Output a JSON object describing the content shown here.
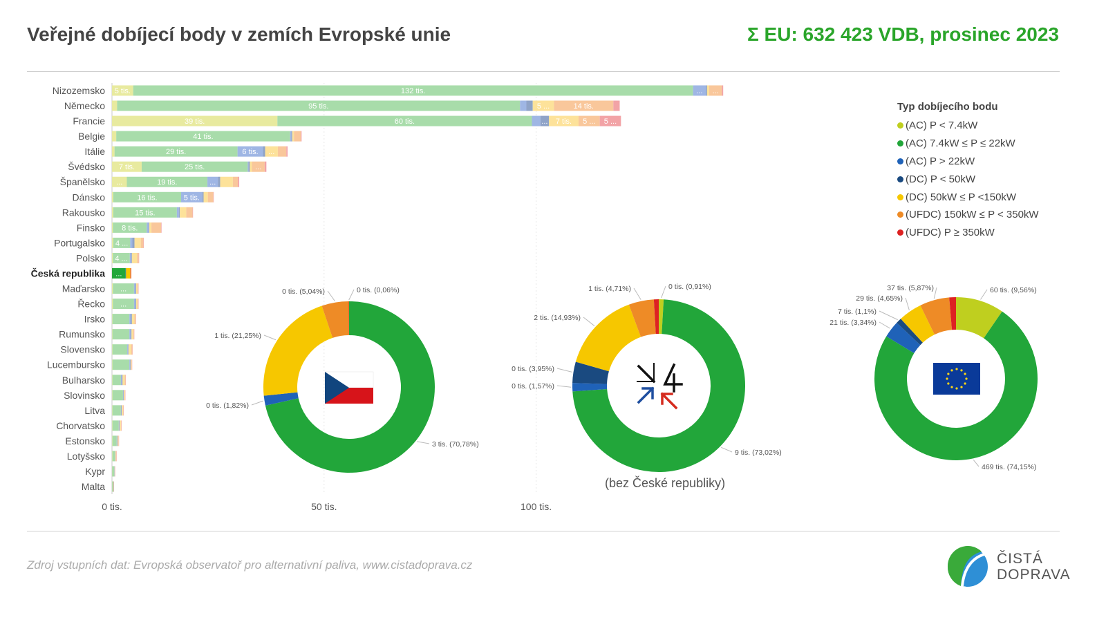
{
  "header": {
    "title": "Veřejné dobíjecí body v zemích Evropské unie",
    "total": "Σ EU: 632 423 VDB, prosinec 2023"
  },
  "footer": {
    "source": "Zdroj vstupních dat: Evropská observatoř pro alternativní paliva, www.cistadoprava.cz",
    "logo_line1": "ČISTÁ",
    "logo_line2": "DOPRAVA"
  },
  "colors": {
    "ac_small": "#e8ea9f",
    "ac_mid": "#a8dcaa",
    "ac_high": "#9fb6e4",
    "dc_small": "#8fa3c7",
    "dc_mid": "#fde29a",
    "ufdc_mid": "#f9c79b",
    "ufdc_high": "#f2a3a6"
  },
  "legend": {
    "title": "Typ dobíjecího bodu",
    "items": [
      {
        "label": "(AC) P < 7.4kW",
        "color": "#bfcf1f"
      },
      {
        "label": "(AC) 7.4kW ≤ P ≤ 22kW",
        "color": "#22a63a"
      },
      {
        "label": "(AC) P > 22kW",
        "color": "#1f62b8"
      },
      {
        "label": "(DC) P < 50kW",
        "color": "#1a4a80"
      },
      {
        "label": "(DC) 50kW ≤ P <150kW",
        "color": "#f6c700"
      },
      {
        "label": "(UFDC) 150kW ≤ P < 350kW",
        "color": "#ee8b26"
      },
      {
        "label": "(UFDC) P ≥ 350kW",
        "color": "#dd2222"
      }
    ]
  },
  "chart_data": [
    {
      "type": "bar",
      "orientation": "horizontal",
      "stacked": true,
      "xlim": [
        0,
        145
      ],
      "xticks": [
        {
          "value": 0,
          "label": "0 tis."
        },
        {
          "value": 50,
          "label": "50 tis."
        },
        {
          "value": 100,
          "label": "100 tis."
        }
      ],
      "unit": "tis.",
      "highlight_category": "Česká republika",
      "series_names": [
        "(AC) P < 7.4kW",
        "(AC) 7.4kW ≤ P ≤ 22kW",
        "(AC) P > 22kW",
        "(DC) P < 50kW",
        "(DC) 50kW ≤ P <150kW",
        "(UFDC) 150kW ≤ P < 350kW",
        "(UFDC) P ≥ 350kW"
      ],
      "rows": [
        {
          "country": "Nizozemsko",
          "values": [
            5,
            132,
            3,
            0.3,
            0.5,
            3,
            0.3
          ],
          "labels": [
            "5 tis.",
            "132 tis.",
            "...",
            "",
            "",
            "...",
            ""
          ]
        },
        {
          "country": "Německo",
          "values": [
            1.2,
            95,
            1.5,
            1.5,
            5,
            14,
            1.5
          ],
          "labels": [
            "",
            "95 tis.",
            "",
            "",
            "5 ...",
            "14 tis.",
            ""
          ]
        },
        {
          "country": "Francie",
          "values": [
            39,
            60,
            2,
            2,
            7,
            5,
            5
          ],
          "labels": [
            "39 tis.",
            "60 tis.",
            "",
            "...",
            "7 tis.",
            "5 ...",
            "5 ..."
          ]
        },
        {
          "country": "Belgie",
          "values": [
            1,
            41,
            0.3,
            0.2,
            0.4,
            1.6,
            0.2
          ],
          "labels": [
            "",
            "41 tis.",
            "",
            "",
            "",
            "",
            ""
          ]
        },
        {
          "country": "Itálie",
          "values": [
            0.6,
            29,
            6,
            0.5,
            3,
            2,
            0.3
          ],
          "labels": [
            "",
            "29 tis.",
            "6 tis.",
            "",
            "...",
            "",
            ""
          ]
        },
        {
          "country": "Švédsko",
          "values": [
            7,
            25,
            0.2,
            0.3,
            0.5,
            3,
            0.4
          ],
          "labels": [
            "7 tis.",
            "25 tis.",
            "",
            "",
            "",
            "...",
            ""
          ]
        },
        {
          "country": "Španělsko",
          "values": [
            3.5,
            19,
            2.5,
            0.5,
            3,
            1.2,
            0.3
          ],
          "labels": [
            "...",
            "19 tis.",
            "...",
            "",
            "",
            "",
            ""
          ]
        },
        {
          "country": "Dánsko",
          "values": [
            0.3,
            16,
            5,
            0.3,
            1,
            1.3,
            0.1
          ],
          "labels": [
            "",
            "16 tis.",
            "5 tis.",
            "",
            "",
            "",
            ""
          ]
        },
        {
          "country": "Rakousko",
          "values": [
            0.3,
            15,
            0.5,
            0.2,
            1.5,
            1.5,
            0.1
          ],
          "labels": [
            "",
            "15 tis.",
            "",
            "",
            "",
            "",
            ""
          ]
        },
        {
          "country": "Finsko",
          "values": [
            0.2,
            8,
            0.5,
            0.1,
            0.5,
            2.3,
            0.1
          ],
          "labels": [
            "",
            "8 tis.",
            "",
            "",
            "",
            "",
            ""
          ]
        },
        {
          "country": "Portugalsko",
          "values": [
            0.3,
            4,
            0.5,
            0.5,
            1.5,
            0.6,
            0.1
          ],
          "labels": [
            "",
            "4 ...",
            "",
            "",
            "",
            "",
            ""
          ]
        },
        {
          "country": "Polsko",
          "values": [
            0.2,
            4,
            0.3,
            0.2,
            1.2,
            0.4,
            0.1
          ],
          "labels": [
            "",
            "4 ...",
            "",
            "",
            "",
            "",
            ""
          ]
        },
        {
          "country": "Česká republika",
          "values": [
            0.01,
            3.2,
            0.08,
            0.01,
            0.96,
            0.23,
            0.01
          ],
          "labels": [
            "",
            "...",
            "",
            "",
            "",
            "",
            ""
          ]
        },
        {
          "country": "Maďarsko",
          "values": [
            0.2,
            5,
            0.3,
            0.2,
            0.3,
            0.2,
            0.05
          ],
          "labels": [
            "",
            "...",
            "",
            "",
            "",
            "",
            ""
          ]
        },
        {
          "country": "Řecko",
          "values": [
            0.2,
            5,
            0.3,
            0.2,
            0.3,
            0.2,
            0.05
          ],
          "labels": [
            "",
            "...",
            "",
            "",
            "",
            "",
            ""
          ]
        },
        {
          "country": "Irsko",
          "values": [
            0.1,
            4,
            0.3,
            0.3,
            0.6,
            0.3,
            0.05
          ],
          "labels": [
            "",
            "",
            "",
            "",
            "",
            "",
            ""
          ]
        },
        {
          "country": "Rumunsko",
          "values": [
            0.1,
            4,
            0.3,
            0.2,
            0.4,
            0.2,
            0.05
          ],
          "labels": [
            "",
            "",
            "",
            "",
            "",
            "",
            ""
          ]
        },
        {
          "country": "Slovensko",
          "values": [
            0.1,
            3.5,
            0.2,
            0.1,
            0.6,
            0.3,
            0.05
          ],
          "labels": [
            "",
            "",
            "",
            "",
            "",
            "",
            ""
          ]
        },
        {
          "country": "Lucembursko",
          "values": [
            0.1,
            4,
            0.2,
            0.1,
            0.2,
            0.1,
            0.02
          ],
          "labels": [
            "",
            "",
            "",
            "",
            "",
            "",
            ""
          ]
        },
        {
          "country": "Bulharsko",
          "values": [
            0.1,
            2,
            0.2,
            0.2,
            0.5,
            0.2,
            0.02
          ],
          "labels": [
            "",
            "",
            "",
            "",
            "",
            "",
            ""
          ]
        },
        {
          "country": "Slovinsko",
          "values": [
            0.1,
            2.5,
            0.1,
            0.1,
            0.2,
            0.1,
            0.02
          ],
          "labels": [
            "",
            "",
            "",
            "",
            "",
            "",
            ""
          ]
        },
        {
          "country": "Litva",
          "values": [
            0.1,
            2,
            0.1,
            0.1,
            0.3,
            0.1,
            0.02
          ],
          "labels": [
            "",
            "",
            "",
            "",
            "",
            "",
            ""
          ]
        },
        {
          "country": "Chorvatsko",
          "values": [
            0.1,
            1.5,
            0.1,
            0.1,
            0.3,
            0.1,
            0.02
          ],
          "labels": [
            "",
            "",
            "",
            "",
            "",
            "",
            ""
          ]
        },
        {
          "country": "Estonsko",
          "values": [
            0.1,
            1,
            0.1,
            0.1,
            0.2,
            0.1,
            0.02
          ],
          "labels": [
            "",
            "",
            "",
            "",
            "",
            "",
            ""
          ]
        },
        {
          "country": "Lotyšsko",
          "values": [
            0.1,
            0.6,
            0.05,
            0.05,
            0.2,
            0.05,
            0.01
          ],
          "labels": [
            "",
            "",
            "",
            "",
            "",
            "",
            ""
          ]
        },
        {
          "country": "Kypr",
          "values": [
            0.05,
            0.5,
            0.05,
            0.02,
            0.05,
            0.02,
            0.01
          ],
          "labels": [
            "",
            "",
            "",
            "",
            "",
            "",
            ""
          ]
        },
        {
          "country": "Malta",
          "values": [
            0.05,
            0.3,
            0.02,
            0.01,
            0.02,
            0.01,
            0.0
          ],
          "labels": [
            "",
            "",
            "",
            "",
            "",
            "",
            ""
          ]
        }
      ]
    },
    {
      "type": "pie",
      "variant": "donut",
      "name": "Česká republika",
      "emblem": "cz-flag",
      "slices": [
        {
          "series": "(AC) 7.4kW ≤ P ≤ 22kW",
          "value": 70.78,
          "label": "3 tis. (70,78%)"
        },
        {
          "series": "(AC) P > 22kW",
          "value": 1.82,
          "label": "0 tis. (1,82%)"
        },
        {
          "series": "(DC) 50kW ≤ P <150kW",
          "value": 21.25,
          "label": "1 tis. (21,25%)"
        },
        {
          "series": "(UFDC) 150kW ≤ P < 350kW",
          "value": 5.04,
          "label": "0 tis. (5,04%)"
        },
        {
          "series": "(UFDC) P ≥ 350kW",
          "value": 0.06,
          "label": "0 tis. (0,06%)"
        }
      ]
    },
    {
      "type": "pie",
      "variant": "donut",
      "name": "V4",
      "emblem": "v4-logo",
      "subtitle": "(bez České republiky)",
      "slices": [
        {
          "series": "(AC) P < 7.4kW",
          "value": 0.91,
          "label": "0 tis. (0,91%)"
        },
        {
          "series": "(AC) 7.4kW ≤ P ≤ 22kW",
          "value": 73.02,
          "label": "9 tis. (73,02%)"
        },
        {
          "series": "(AC) P > 22kW",
          "value": 1.57,
          "label": "0 tis. (1,57%)"
        },
        {
          "series": "(DC) P < 50kW",
          "value": 3.95,
          "label": "0 tis. (3,95%)"
        },
        {
          "series": "(DC) 50kW ≤ P <150kW",
          "value": 14.93,
          "label": "2 tis. (14,93%)"
        },
        {
          "series": "(UFDC) 150kW ≤ P < 350kW",
          "value": 4.71,
          "label": "1 tis. (4,71%)"
        },
        {
          "series": "(UFDC) P ≥ 350kW",
          "value": 0.91,
          "label": ""
        }
      ]
    },
    {
      "type": "pie",
      "variant": "donut",
      "name": "EU",
      "emblem": "eu-flag",
      "slices": [
        {
          "series": "(AC) P < 7.4kW",
          "value": 9.56,
          "label": "60 tis. (9,56%)"
        },
        {
          "series": "(AC) 7.4kW ≤ P ≤ 22kW",
          "value": 74.15,
          "label": "469 tis. (74,15%)"
        },
        {
          "series": "(AC) P > 22kW",
          "value": 3.34,
          "label": "21 tis. (3,34%)"
        },
        {
          "series": "(DC) P < 50kW",
          "value": 1.1,
          "label": "7 tis. (1,1%)"
        },
        {
          "series": "(DC) 50kW ≤ P <150kW",
          "value": 4.65,
          "label": "29 tis. (4,65%)"
        },
        {
          "series": "(UFDC) 150kW ≤ P < 350kW",
          "value": 5.87,
          "label": "37 tis. (5,87%)"
        },
        {
          "series": "(UFDC) P ≥ 350kW",
          "value": 1.33,
          "label": ""
        }
      ]
    }
  ]
}
